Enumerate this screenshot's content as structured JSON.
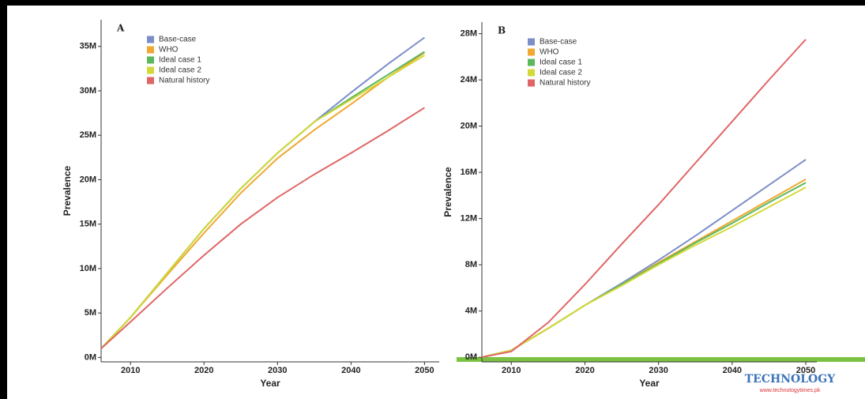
{
  "chart_data": [
    {
      "type": "line",
      "title": "A",
      "x_label": "Year",
      "y_label": "Prevalence",
      "x": [
        2006,
        2010,
        2015,
        2020,
        2025,
        2030,
        2035,
        2040,
        2045,
        2050
      ],
      "xlim": [
        2006,
        2052
      ],
      "xticks": [
        2010,
        2020,
        2030,
        2040,
        2050
      ],
      "ylim": [
        -0.5,
        38
      ],
      "yticks": [
        {
          "value": 0,
          "label": "0M"
        },
        {
          "value": 5,
          "label": "5M"
        },
        {
          "value": 10,
          "label": "10M"
        },
        {
          "value": 15,
          "label": "15M"
        },
        {
          "value": 20,
          "label": "20M"
        },
        {
          "value": 25,
          "label": "25M"
        },
        {
          "value": 30,
          "label": "30M"
        },
        {
          "value": 35,
          "label": "35M"
        }
      ],
      "legend": "top-left",
      "series": [
        {
          "name": "Base-case",
          "color": "#7b8ec8",
          "values": [
            1,
            4.5,
            9.5,
            14.5,
            19,
            23,
            26.5,
            29.8,
            33,
            36
          ]
        },
        {
          "name": "WHO",
          "color": "#f0a830",
          "values": [
            1,
            4.5,
            9.3,
            14,
            18.5,
            22.4,
            25.6,
            28.5,
            31.5,
            34.3
          ]
        },
        {
          "name": "Ideal case 1",
          "color": "#5cb85c",
          "values": [
            1,
            4.5,
            9.5,
            14.5,
            19,
            23,
            26.5,
            29.2,
            31.8,
            34.4
          ]
        },
        {
          "name": "Ideal case 2",
          "color": "#d4d93a",
          "values": [
            1,
            4.5,
            9.5,
            14.5,
            19,
            23,
            26.5,
            29,
            31.5,
            34
          ]
        },
        {
          "name": "Natural history",
          "color": "#e06666",
          "values": [
            1,
            4,
            7.8,
            11.5,
            15,
            18,
            20.6,
            23,
            25.5,
            28.1
          ]
        }
      ]
    },
    {
      "type": "line",
      "title": "B",
      "x_label": "Year",
      "y_label": "Prevalence",
      "x": [
        2006,
        2010,
        2015,
        2020,
        2025,
        2030,
        2035,
        2040,
        2045,
        2050
      ],
      "xlim": [
        2006,
        2051.5
      ],
      "xticks": [
        2010,
        2020,
        2030,
        2040,
        2050
      ],
      "ylim": [
        -0.4,
        29
      ],
      "yticks": [
        {
          "value": 0,
          "label": "0M"
        },
        {
          "value": 4,
          "label": "4M"
        },
        {
          "value": 8,
          "label": "8M"
        },
        {
          "value": 12,
          "label": "12M"
        },
        {
          "value": 16,
          "label": "16M"
        },
        {
          "value": 20,
          "label": "20M"
        },
        {
          "value": 24,
          "label": "24M"
        },
        {
          "value": 28,
          "label": "28M"
        }
      ],
      "legend": "top-left",
      "series": [
        {
          "name": "Base-case",
          "color": "#7b8ec8",
          "values": [
            0,
            0.6,
            2.5,
            4.5,
            6.4,
            8.4,
            10.5,
            12.7,
            14.9,
            17.1
          ]
        },
        {
          "name": "WHO",
          "color": "#f0a830",
          "values": [
            0,
            0.6,
            2.5,
            4.5,
            6.3,
            8.2,
            10,
            11.8,
            13.6,
            15.4
          ]
        },
        {
          "name": "Ideal case 1",
          "color": "#5cb85c",
          "values": [
            0,
            0.6,
            2.5,
            4.5,
            6.3,
            8.1,
            9.9,
            11.6,
            13.4,
            15.1
          ]
        },
        {
          "name": "Ideal case 2",
          "color": "#d4d93a",
          "values": [
            0,
            0.6,
            2.5,
            4.5,
            6.2,
            8,
            9.7,
            11.3,
            13,
            14.7
          ]
        },
        {
          "name": "Natural history",
          "color": "#e06666",
          "values": [
            0,
            0.5,
            3,
            6.3,
            9.8,
            13.2,
            16.8,
            20.4,
            24,
            27.5
          ]
        }
      ]
    }
  ],
  "watermark": {
    "name": "TECHNOLOGY",
    "url": "www.technologytimes.pk"
  }
}
